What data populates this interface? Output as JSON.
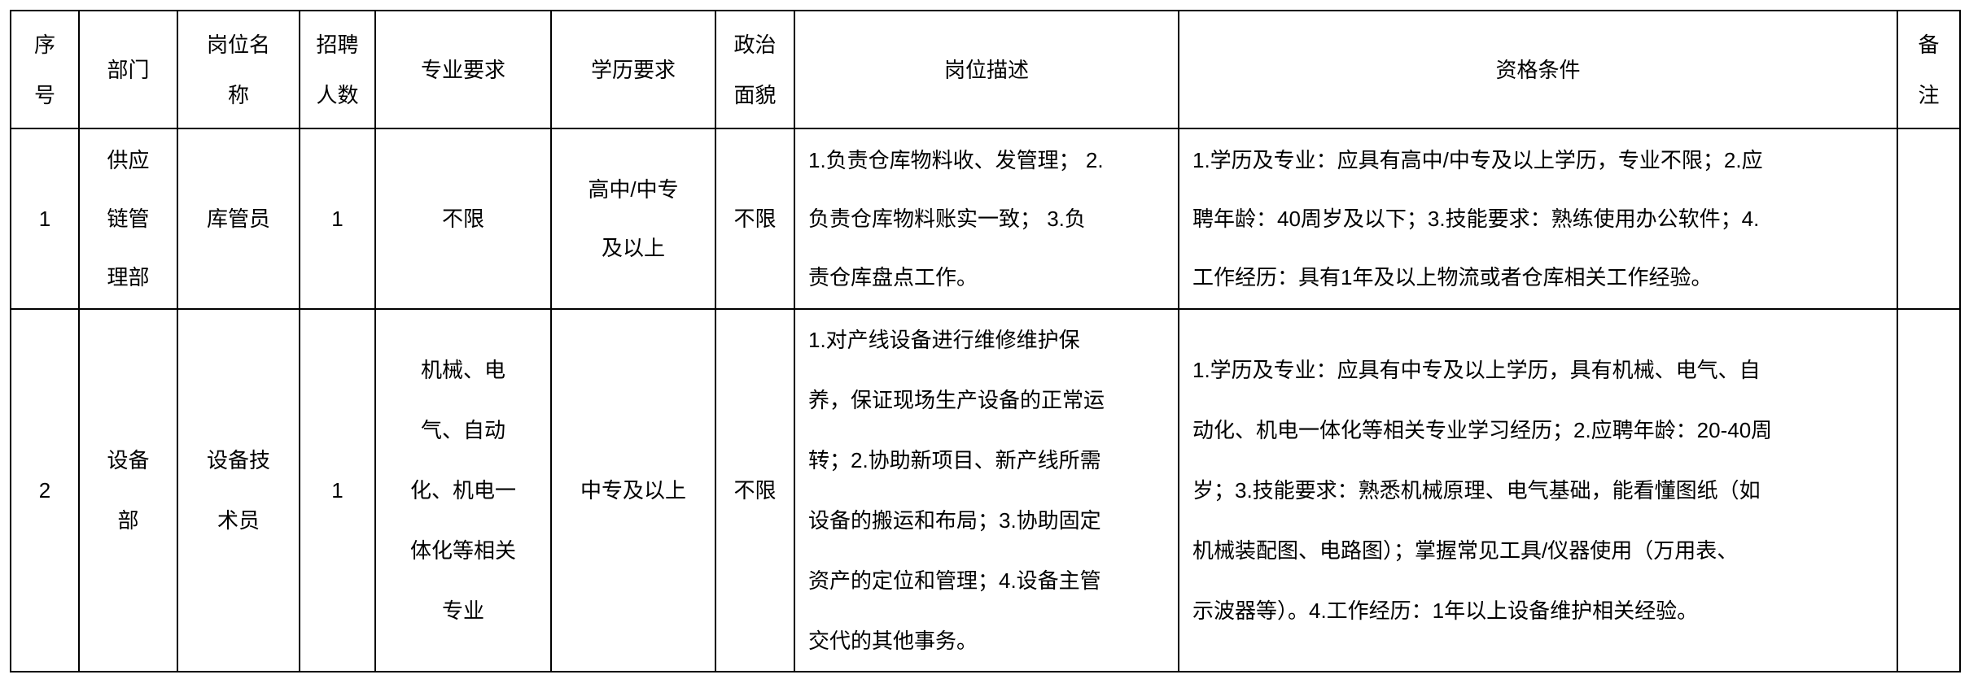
{
  "header": {
    "seq": [
      "序",
      "号"
    ],
    "dept": [
      "部门"
    ],
    "position": [
      "岗位名",
      "称"
    ],
    "count": [
      "招聘",
      "人数"
    ],
    "major": [
      "专业要求"
    ],
    "education": [
      "学历要求"
    ],
    "political": [
      "政治",
      "面貌"
    ],
    "description": [
      "岗位描述"
    ],
    "qualification": [
      "资格条件"
    ],
    "remark": [
      "备",
      "注"
    ]
  },
  "rows": [
    {
      "seq": [
        "1"
      ],
      "dept": [
        "供应",
        "链管",
        "理部"
      ],
      "position": [
        "库管员"
      ],
      "count": [
        "1"
      ],
      "major": [
        "不限"
      ],
      "education": [
        "高中/中专",
        "及以上"
      ],
      "political": [
        "不限"
      ],
      "description": [
        "1.负责仓库物料收、发管理；  2.",
        "负责仓库物料账实一致；  3.负",
        "责仓库盘点工作。"
      ],
      "qualification": [
        "1.学历及专业：应具有高中/中专及以上学历，专业不限；2.应",
        "聘年龄：40周岁及以下；3.技能要求：熟练使用办公软件；4.",
        "工作经历：具有1年及以上物流或者仓库相关工作经验。"
      ],
      "remark": []
    },
    {
      "seq": [
        "2"
      ],
      "dept": [
        "设备",
        "部"
      ],
      "position": [
        "设备技",
        "术员"
      ],
      "count": [
        "1"
      ],
      "major": [
        "机械、电",
        "气、自动",
        "化、机电一",
        "体化等相关",
        "专业"
      ],
      "education": [
        "中专及以上"
      ],
      "political": [
        "不限"
      ],
      "description": [
        "1.对产线设备进行维修维护保",
        "养，保证现场生产设备的正常运",
        "转；2.协助新项目、新产线所需",
        "设备的搬运和布局；3.协助固定",
        "资产的定位和管理；4.设备主管",
        "交代的其他事务。"
      ],
      "qualification": [
        "1.学历及专业：应具有中专及以上学历，具有机械、电气、自",
        "动化、机电一体化等相关专业学习经历；2.应聘年龄：20-40周",
        "岁；3.技能要求：熟悉机械原理、电气基础，能看懂图纸（如",
        "机械装配图、电路图）；掌握常见工具/仪器使用（万用表、",
        "示波器等）。4.工作经历：1年以上设备维护相关经验。"
      ],
      "remark": []
    }
  ]
}
